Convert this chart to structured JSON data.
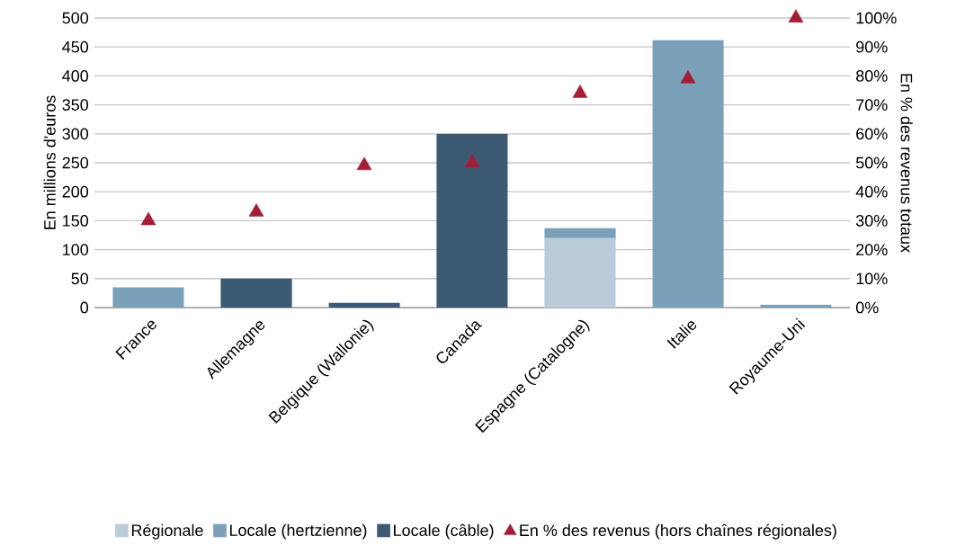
{
  "chart_data": {
    "type": "bar",
    "stacked": true,
    "categories": [
      "France",
      "Allemagne",
      "Belgique (Wallonie)",
      "Canada",
      "Espagne (Catalogne)",
      "Italie",
      "Royaume-Uni"
    ],
    "ylabel": "En millions d'euros",
    "y2label": "En % des revenus totaux",
    "series": [
      {
        "name": "Régionale",
        "color": "#bccdda",
        "values": [
          null,
          null,
          null,
          null,
          120,
          null,
          null
        ]
      },
      {
        "name": "Locale (hertzienne)",
        "color": "#7ba0b9",
        "values": [
          35,
          null,
          null,
          null,
          17,
          462,
          5
        ]
      },
      {
        "name": "Locale (câble)",
        "color": "#3c5a73",
        "values": [
          null,
          50,
          8,
          300,
          null,
          null,
          null
        ]
      },
      {
        "name": "En % des revenus (hors chaînes régionales)",
        "type": "scatter",
        "axis": "y2",
        "marker": "triangle",
        "color": "#a51e36",
        "values": [
          30,
          33,
          49,
          50,
          74,
          79,
          100
        ]
      }
    ],
    "ylim": [
      0,
      500
    ],
    "yticks": [
      0,
      50,
      100,
      150,
      200,
      250,
      300,
      350,
      400,
      450,
      500
    ],
    "y2lim": [
      0,
      100
    ],
    "y2ticks": [
      {
        "value": 0,
        "label": "0%"
      },
      {
        "value": 10,
        "label": "10%"
      },
      {
        "value": 20,
        "label": "20%"
      },
      {
        "value": 30,
        "label": "30%"
      },
      {
        "value": 40,
        "label": "40%"
      },
      {
        "value": 50,
        "label": "50%"
      },
      {
        "value": 60,
        "label": "60%"
      },
      {
        "value": 70,
        "label": "70%"
      },
      {
        "value": 80,
        "label": "80%"
      },
      {
        "value": 90,
        "label": "90%"
      },
      {
        "value": 100,
        "label": "100%"
      }
    ],
    "grid": "y",
    "legend": "bottom"
  }
}
